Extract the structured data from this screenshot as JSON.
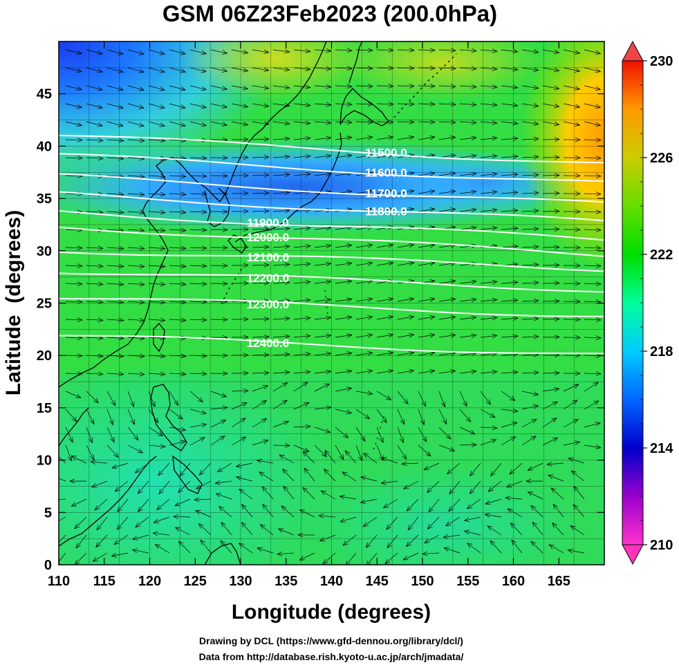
{
  "title": "GSM 06Z23Feb2023 (200.0hPa)",
  "x_axis": {
    "label": "Longitude (degrees)",
    "range": [
      110,
      170
    ],
    "ticks": [
      "110",
      "115",
      "120",
      "125",
      "130",
      "135",
      "140",
      "145",
      "150",
      "155",
      "160",
      "165"
    ]
  },
  "y_axis": {
    "label": "Latitude  (degrees)",
    "range": [
      0,
      50
    ],
    "ticks": [
      "0",
      "5",
      "10",
      "15",
      "20",
      "25",
      "30",
      "35",
      "40",
      "45"
    ]
  },
  "colorbar": {
    "range": [
      210,
      230
    ],
    "labels": [
      "210",
      "214",
      "218",
      "222",
      "226",
      "230"
    ],
    "colors": [
      "#ff33cc",
      "#9900cc",
      "#0000cc",
      "#0066ff",
      "#00ccff",
      "#00ff99",
      "#00dd00",
      "#66dd00",
      "#cccc00",
      "#ff9900",
      "#ff3300",
      "#ee1100"
    ]
  },
  "contours": [
    {
      "label": "11500.0",
      "lon": 146,
      "lat": 39.4
    },
    {
      "label": "11600.0",
      "lon": 146,
      "lat": 37.5
    },
    {
      "label": "11700.0",
      "lon": 146,
      "lat": 35.5
    },
    {
      "label": "11800.0",
      "lon": 146,
      "lat": 33.8
    },
    {
      "label": "11900.0",
      "lon": 133,
      "lat": 32.7
    },
    {
      "label": "12000.0",
      "lon": 133,
      "lat": 31.3
    },
    {
      "label": "12100.0",
      "lon": 133,
      "lat": 29.4
    },
    {
      "label": "12200.0",
      "lon": 133,
      "lat": 27.4
    },
    {
      "label": "12300.0",
      "lon": 133,
      "lat": 24.9
    },
    {
      "label": "12400.0",
      "lon": 133,
      "lat": 21.2
    }
  ],
  "credits": {
    "line1": "Drawing by DCL (https://www.gfd-dennou.org/library/dcl/)",
    "line2": "Data from http://database.rish.kyoto-u.ac.jp/arch/jmadata/"
  },
  "colors": {
    "contour": "#ffffff",
    "coast": "#000000",
    "streamline": "#000000"
  }
}
